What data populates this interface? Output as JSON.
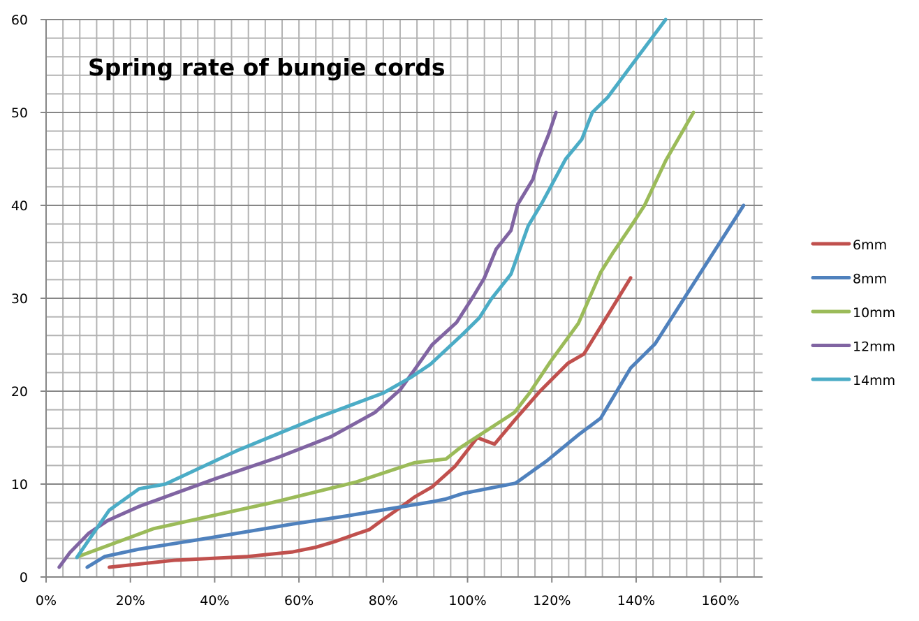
{
  "chart_data": {
    "type": "line",
    "title": "Spring rate of bungie cords",
    "xlabel": "",
    "ylabel": "",
    "xlim": [
      0,
      170
    ],
    "ylim": [
      0,
      60
    ],
    "x_ticks": [
      0,
      20,
      40,
      60,
      80,
      100,
      120,
      140,
      160
    ],
    "x_tick_labels": [
      "0%",
      "20%",
      "40%",
      "60%",
      "80%",
      "100%",
      "120%",
      "140%",
      "160%"
    ],
    "y_ticks": [
      0,
      10,
      20,
      30,
      40,
      50,
      60
    ],
    "y_tick_labels": [
      "0",
      "10",
      "20",
      "30",
      "40",
      "50",
      "60"
    ],
    "x_minor_step": 4,
    "y_minor_step": 2,
    "grid": true,
    "legend_position": "right",
    "series": [
      {
        "name": "6mm",
        "color": "#C0504D",
        "x": [
          15,
          30.4,
          47.8,
          58.5,
          64,
          68.4,
          73.4,
          76.7,
          79.7,
          84.1,
          87.4,
          91.6,
          97,
          102.3,
          106.4,
          111.4,
          117.2,
          123.8,
          127.6,
          138.7
        ],
        "y": [
          1.05,
          1.8,
          2.2,
          2.7,
          3.2,
          3.8,
          4.6,
          5.1,
          6.1,
          7.5,
          8.6,
          9.7,
          11.9,
          15,
          14.3,
          17,
          20,
          23,
          24,
          32.2
        ]
      },
      {
        "name": "8mm",
        "color": "#4F81BD",
        "x": [
          9.75,
          13.9,
          22.1,
          38.7,
          58.5,
          71.7,
          91.6,
          94.9,
          99,
          111.4,
          118.8,
          126.3,
          131.6,
          138.7,
          144.5,
          165.5
        ],
        "y": [
          1.05,
          2.2,
          3,
          4.2,
          5.7,
          6.6,
          8.1,
          8.4,
          9,
          10.1,
          12.5,
          15.3,
          17.1,
          22.5,
          25.1,
          40
        ]
      },
      {
        "name": "10mm",
        "color": "#9BBB59",
        "x": [
          7.6,
          25.5,
          53.6,
          73.4,
          87.4,
          94.9,
          98.2,
          111.1,
          114.7,
          119.7,
          126.3,
          131.6,
          134.5,
          138.7,
          142,
          147,
          153.6
        ],
        "y": [
          2.2,
          5.2,
          8,
          10.2,
          12.3,
          12.7,
          13.9,
          17.7,
          19.8,
          23.2,
          27.3,
          32.8,
          34.9,
          37.7,
          40,
          44.8,
          50
        ]
      },
      {
        "name": "12mm",
        "color": "#8064A2",
        "x": [
          3.1,
          5.6,
          10.1,
          14.7,
          22.1,
          40.3,
          55.2,
          67.6,
          78,
          84.1,
          87.4,
          91.6,
          97.4,
          101.5,
          104,
          106.8,
          110.3,
          111.9,
          115.5,
          116.9,
          119.2,
          121
        ],
        "y": [
          1.05,
          2.6,
          4.7,
          6.1,
          7.6,
          10.6,
          12.9,
          15.1,
          17.7,
          20.2,
          22.3,
          25,
          27.4,
          30.3,
          32.2,
          35.3,
          37.3,
          40.1,
          42.8,
          45,
          47.6,
          50
        ]
      },
      {
        "name": "14mm",
        "color": "#4BACC6",
        "x": [
          7.3,
          15,
          22.1,
          28.3,
          45.3,
          63.5,
          80,
          86.6,
          91.2,
          99,
          102.8,
          105.6,
          110.3,
          114.4,
          117.7,
          123.3,
          127.1,
          129.6,
          133.2,
          147
        ],
        "y": [
          2.1,
          7.2,
          9.5,
          10,
          13.6,
          17,
          19.8,
          21.5,
          22.9,
          26.2,
          27.9,
          29.9,
          32.6,
          37.8,
          40.3,
          45,
          47.1,
          50,
          51.6,
          60
        ]
      }
    ]
  }
}
